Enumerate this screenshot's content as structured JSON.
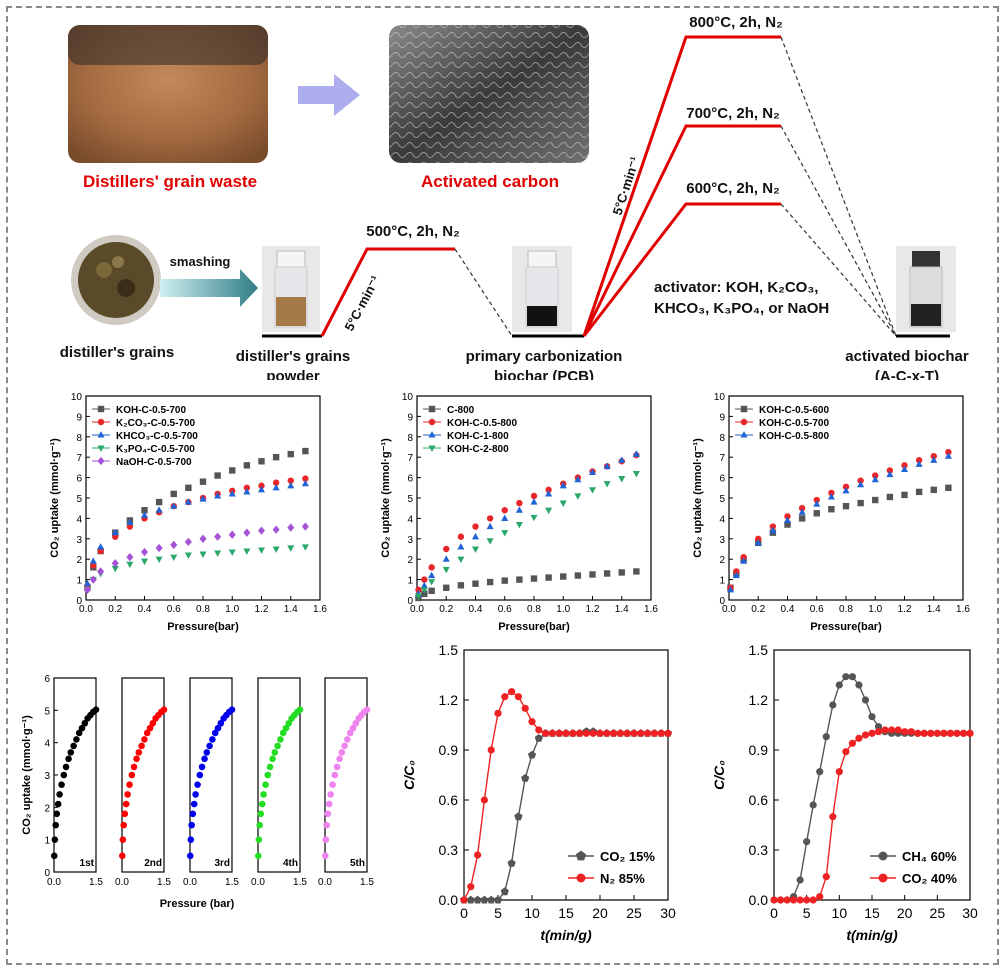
{
  "schematic": {
    "raw_label": "Distillers' grain waste",
    "product_label": "Activated carbon",
    "grains_label": "distiller's grains",
    "smashing_label": "smashing",
    "powder_label_1": "distiller's grains",
    "powder_label_2": "powder",
    "pcb_label_1": "primary carbonization",
    "pcb_label_2": "biochar (PCB)",
    "act_label_1": "activated biochar",
    "act_label_2": "(A-C-x-T)",
    "step1": "500°C, 2h, N₂",
    "rate": "5°C·min⁻¹",
    "step800": "800°C, 2h, N₂",
    "step700": "700°C, 2h, N₂",
    "step600": "600°C, 2h, N₂",
    "activator_1": "activator: KOH, K₂CO₃,",
    "activator_2": "KHCO₃, K₃PO₄, or NaOH",
    "colors": {
      "accent_red": "#e00000",
      "arrow_purple": "#9a98e8",
      "arrow_teal": "#2e7d86"
    }
  },
  "chart_data": [
    {
      "id": "a",
      "type": "scatter",
      "xlabel": "Pressure(bar)",
      "ylabel": "CO₂ uptake (mmol·g⁻¹)",
      "xlim": [
        0,
        1.6
      ],
      "ylim": [
        0,
        10
      ],
      "xticks": [
        "0.0",
        "0.2",
        "0.4",
        "0.6",
        "0.8",
        "1.0",
        "1.2",
        "1.4",
        "1.6"
      ],
      "yticks": [
        "0",
        "1",
        "2",
        "3",
        "4",
        "5",
        "6",
        "7",
        "8",
        "9",
        "10"
      ],
      "legend_position": "top-left",
      "series": [
        {
          "name": "KOH-C-0.5-700",
          "marker": "square",
          "color": "#555555",
          "x": [
            0.01,
            0.05,
            0.1,
            0.2,
            0.3,
            0.4,
            0.5,
            0.6,
            0.7,
            0.8,
            0.9,
            1.0,
            1.1,
            1.2,
            1.3,
            1.4,
            1.5
          ],
          "y": [
            0.6,
            1.6,
            2.4,
            3.3,
            3.9,
            4.4,
            4.8,
            5.2,
            5.5,
            5.8,
            6.1,
            6.35,
            6.6,
            6.8,
            7.0,
            7.15,
            7.3
          ]
        },
        {
          "name": "K₂CO₃-C-0.5-700",
          "marker": "circle",
          "color": "#e8262a",
          "x": [
            0.01,
            0.05,
            0.1,
            0.2,
            0.3,
            0.4,
            0.5,
            0.6,
            0.7,
            0.8,
            0.9,
            1.0,
            1.1,
            1.2,
            1.3,
            1.4,
            1.5
          ],
          "y": [
            0.7,
            1.7,
            2.4,
            3.1,
            3.6,
            4.0,
            4.3,
            4.6,
            4.8,
            5.0,
            5.2,
            5.35,
            5.5,
            5.6,
            5.75,
            5.85,
            5.95
          ]
        },
        {
          "name": "KHCO₃-C-0.5-700",
          "marker": "triangle-up",
          "color": "#1f63d6",
          "x": [
            0.01,
            0.05,
            0.1,
            0.2,
            0.3,
            0.4,
            0.5,
            0.6,
            0.7,
            0.8,
            0.9,
            1.0,
            1.1,
            1.2,
            1.3,
            1.4,
            1.5
          ],
          "y": [
            0.8,
            1.9,
            2.6,
            3.3,
            3.8,
            4.15,
            4.4,
            4.6,
            4.8,
            4.95,
            5.1,
            5.2,
            5.3,
            5.4,
            5.5,
            5.6,
            5.7
          ]
        },
        {
          "name": "K₃PO₄-C-0.5-700",
          "marker": "triangle-down",
          "color": "#2aa86a",
          "x": [
            0.01,
            0.05,
            0.1,
            0.2,
            0.3,
            0.4,
            0.5,
            0.6,
            0.7,
            0.8,
            0.9,
            1.0,
            1.1,
            1.2,
            1.3,
            1.4,
            1.5
          ],
          "y": [
            0.5,
            1.0,
            1.3,
            1.55,
            1.75,
            1.9,
            2.0,
            2.1,
            2.2,
            2.25,
            2.3,
            2.35,
            2.4,
            2.45,
            2.5,
            2.55,
            2.6
          ]
        },
        {
          "name": "NaOH-C-0.5-700",
          "marker": "diamond",
          "color": "#a452d6",
          "x": [
            0.01,
            0.05,
            0.1,
            0.2,
            0.3,
            0.4,
            0.5,
            0.6,
            0.7,
            0.8,
            0.9,
            1.0,
            1.1,
            1.2,
            1.3,
            1.4,
            1.5
          ],
          "y": [
            0.5,
            1.0,
            1.4,
            1.8,
            2.1,
            2.35,
            2.55,
            2.7,
            2.85,
            3.0,
            3.1,
            3.2,
            3.3,
            3.4,
            3.45,
            3.55,
            3.6
          ]
        }
      ]
    },
    {
      "id": "b",
      "type": "scatter",
      "xlabel": "Pressure(bar)",
      "ylabel": "CO₂ uptake (mmol·g⁻¹)",
      "xlim": [
        0,
        1.6
      ],
      "ylim": [
        0,
        10
      ],
      "xticks": [
        "0.0",
        "0.2",
        "0.4",
        "0.6",
        "0.8",
        "1.0",
        "1.2",
        "1.4",
        "1.6"
      ],
      "yticks": [
        "0",
        "1",
        "2",
        "3",
        "4",
        "5",
        "6",
        "7",
        "8",
        "9",
        "10"
      ],
      "legend_position": "top-left",
      "series": [
        {
          "name": "C-800",
          "marker": "square",
          "color": "#555555",
          "x": [
            0.01,
            0.05,
            0.1,
            0.2,
            0.3,
            0.4,
            0.5,
            0.6,
            0.7,
            0.8,
            0.9,
            1.0,
            1.1,
            1.2,
            1.3,
            1.4,
            1.5
          ],
          "y": [
            0.1,
            0.3,
            0.45,
            0.6,
            0.72,
            0.8,
            0.88,
            0.95,
            1.0,
            1.05,
            1.1,
            1.15,
            1.2,
            1.25,
            1.3,
            1.35,
            1.4
          ]
        },
        {
          "name": "KOH-C-0.5-800",
          "marker": "circle",
          "color": "#e8262a",
          "x": [
            0.01,
            0.05,
            0.1,
            0.2,
            0.3,
            0.4,
            0.5,
            0.6,
            0.7,
            0.8,
            0.9,
            1.0,
            1.1,
            1.2,
            1.3,
            1.4,
            1.5
          ],
          "y": [
            0.5,
            1.0,
            1.6,
            2.5,
            3.1,
            3.6,
            4.0,
            4.4,
            4.75,
            5.1,
            5.4,
            5.7,
            6.0,
            6.3,
            6.55,
            6.8,
            7.1
          ]
        },
        {
          "name": "KOH-C-1-800",
          "marker": "triangle-up",
          "color": "#1f63d6",
          "x": [
            0.01,
            0.05,
            0.1,
            0.2,
            0.3,
            0.4,
            0.5,
            0.6,
            0.7,
            0.8,
            0.9,
            1.0,
            1.1,
            1.2,
            1.3,
            1.4,
            1.5
          ],
          "y": [
            0.3,
            0.7,
            1.2,
            2.0,
            2.6,
            3.1,
            3.6,
            4.0,
            4.4,
            4.8,
            5.2,
            5.6,
            5.9,
            6.25,
            6.55,
            6.85,
            7.15
          ]
        },
        {
          "name": "KOH-C-2-800",
          "marker": "triangle-down",
          "color": "#2aa86a",
          "x": [
            0.01,
            0.05,
            0.1,
            0.2,
            0.3,
            0.4,
            0.5,
            0.6,
            0.7,
            0.8,
            0.9,
            1.0,
            1.1,
            1.2,
            1.3,
            1.4,
            1.5
          ],
          "y": [
            0.2,
            0.5,
            0.9,
            1.5,
            2.0,
            2.5,
            2.9,
            3.3,
            3.7,
            4.05,
            4.4,
            4.75,
            5.1,
            5.4,
            5.7,
            5.95,
            6.2
          ]
        }
      ]
    },
    {
      "id": "c",
      "type": "scatter",
      "xlabel": "Pressure(bar)",
      "ylabel": "CO₂ uptake (mmol·g⁻¹)",
      "xlim": [
        0,
        1.6
      ],
      "ylim": [
        0,
        10
      ],
      "xticks": [
        "0.0",
        "0.2",
        "0.4",
        "0.6",
        "0.8",
        "1.0",
        "1.2",
        "1.4",
        "1.6"
      ],
      "yticks": [
        "0",
        "1",
        "2",
        "3",
        "4",
        "5",
        "6",
        "7",
        "8",
        "9",
        "10"
      ],
      "legend_position": "top-left",
      "series": [
        {
          "name": "KOH-C-0.5-600",
          "marker": "square",
          "color": "#555555",
          "x": [
            0.01,
            0.05,
            0.1,
            0.2,
            0.3,
            0.4,
            0.5,
            0.6,
            0.7,
            0.8,
            0.9,
            1.0,
            1.1,
            1.2,
            1.3,
            1.4,
            1.5
          ],
          "y": [
            0.6,
            1.3,
            2.0,
            2.8,
            3.3,
            3.7,
            4.0,
            4.25,
            4.45,
            4.6,
            4.75,
            4.9,
            5.05,
            5.15,
            5.3,
            5.4,
            5.5
          ]
        },
        {
          "name": "KOH-C-0.5-700",
          "marker": "circle",
          "color": "#e8262a",
          "x": [
            0.01,
            0.05,
            0.1,
            0.2,
            0.3,
            0.4,
            0.5,
            0.6,
            0.7,
            0.8,
            0.9,
            1.0,
            1.1,
            1.2,
            1.3,
            1.4,
            1.5
          ],
          "y": [
            0.6,
            1.4,
            2.1,
            3.0,
            3.6,
            4.1,
            4.5,
            4.9,
            5.25,
            5.55,
            5.85,
            6.1,
            6.35,
            6.6,
            6.85,
            7.05,
            7.25
          ]
        },
        {
          "name": "KOH-C-0.5-800",
          "marker": "triangle-up",
          "color": "#1f63d6",
          "x": [
            0.01,
            0.05,
            0.1,
            0.2,
            0.3,
            0.4,
            0.5,
            0.6,
            0.7,
            0.8,
            0.9,
            1.0,
            1.1,
            1.2,
            1.3,
            1.4,
            1.5
          ],
          "y": [
            0.5,
            1.2,
            1.9,
            2.8,
            3.4,
            3.9,
            4.3,
            4.7,
            5.05,
            5.35,
            5.65,
            5.9,
            6.15,
            6.4,
            6.65,
            6.85,
            7.05
          ]
        }
      ]
    },
    {
      "id": "d",
      "type": "scatter",
      "xlabel": "Pressure (bar)",
      "ylabel": "CO₂ uptake (mmol·g⁻¹)",
      "ylim": [
        0,
        6
      ],
      "xlim": [
        0,
        1.5
      ],
      "yticks": [
        "0",
        "1",
        "2",
        "3",
        "4",
        "5",
        "6"
      ],
      "xticks": [
        "0.0",
        "1.5"
      ],
      "cycles": [
        {
          "name": "1st",
          "color": "#000000"
        },
        {
          "name": "2nd",
          "color": "#ff0000"
        },
        {
          "name": "3rd",
          "color": "#0000ee"
        },
        {
          "name": "4th",
          "color": "#22dd22"
        },
        {
          "name": "5th",
          "color": "#ee82ee"
        }
      ],
      "cycle_x": [
        0.01,
        0.03,
        0.06,
        0.1,
        0.15,
        0.2,
        0.27,
        0.35,
        0.43,
        0.52,
        0.6,
        0.7,
        0.8,
        0.9,
        1.0,
        1.1,
        1.2,
        1.3,
        1.4,
        1.5
      ],
      "cycle_y": [
        0.5,
        1.0,
        1.45,
        1.8,
        2.1,
        2.4,
        2.7,
        3.0,
        3.25,
        3.5,
        3.7,
        3.9,
        4.1,
        4.3,
        4.45,
        4.6,
        4.75,
        4.85,
        4.95,
        5.02
      ]
    },
    {
      "id": "e",
      "type": "line",
      "xlabel": "t(min/g)",
      "ylabel": "C/C₀",
      "xlim": [
        0,
        30
      ],
      "ylim": [
        0,
        1.5
      ],
      "xticks": [
        "0",
        "5",
        "10",
        "15",
        "20",
        "25",
        "30"
      ],
      "yticks": [
        "0.0",
        "0.3",
        "0.6",
        "0.9",
        "1.2",
        "1.5"
      ],
      "legend_position": "bottom-right",
      "series": [
        {
          "name": "CO₂ 15%",
          "marker": "pentagon",
          "color": "#555555",
          "x": [
            0,
            1,
            2,
            3,
            4,
            5,
            6,
            7,
            8,
            9,
            10,
            11,
            12,
            13,
            14,
            15,
            16,
            17,
            18,
            19,
            20,
            21,
            22,
            23,
            24,
            25,
            26,
            27,
            28,
            29,
            30
          ],
          "y": [
            0,
            0,
            0,
            0,
            0,
            0,
            0.05,
            0.22,
            0.5,
            0.73,
            0.87,
            0.97,
            1.0,
            1.0,
            1.0,
            1.0,
            1.0,
            1.0,
            1.01,
            1.01,
            1.0,
            1.0,
            1.0,
            1.0,
            1.0,
            1.0,
            1.0,
            1.0,
            1.0,
            1.0,
            1.0
          ]
        },
        {
          "name": "N₂ 85%",
          "marker": "circle",
          "color": "#ee2222",
          "x": [
            0,
            1,
            2,
            3,
            4,
            5,
            6,
            7,
            8,
            9,
            10,
            11,
            12,
            13,
            14,
            15,
            16,
            17,
            18,
            19,
            20,
            21,
            22,
            23,
            24,
            25,
            26,
            27,
            28,
            29,
            30
          ],
          "y": [
            0,
            0.08,
            0.27,
            0.6,
            0.9,
            1.12,
            1.22,
            1.25,
            1.22,
            1.15,
            1.07,
            1.02,
            1.0,
            1.0,
            1.0,
            1.0,
            1.0,
            1.0,
            1.0,
            1.0,
            1.0,
            1.0,
            1.0,
            1.0,
            1.0,
            1.0,
            1.0,
            1.0,
            1.0,
            1.0,
            1.0
          ]
        }
      ]
    },
    {
      "id": "f",
      "type": "line",
      "xlabel": "t(min/g)",
      "ylabel": "C/C₀",
      "xlim": [
        0,
        30
      ],
      "ylim": [
        0,
        1.5
      ],
      "xticks": [
        "0",
        "5",
        "10",
        "15",
        "20",
        "25",
        "30"
      ],
      "yticks": [
        "0.0",
        "0.3",
        "0.6",
        "0.9",
        "1.2",
        "1.5"
      ],
      "legend_position": "bottom-right",
      "series": [
        {
          "name": "CH₄ 60%",
          "marker": "circle",
          "color": "#555555",
          "x": [
            0,
            1,
            2,
            3,
            4,
            5,
            6,
            7,
            8,
            9,
            10,
            11,
            12,
            13,
            14,
            15,
            16,
            17,
            18,
            19,
            20,
            21,
            22,
            23,
            24,
            25,
            26,
            27,
            28,
            29,
            30
          ],
          "y": [
            0,
            0,
            0,
            0.02,
            0.12,
            0.35,
            0.57,
            0.77,
            0.98,
            1.17,
            1.29,
            1.34,
            1.34,
            1.29,
            1.2,
            1.1,
            1.04,
            1.01,
            1.0,
            1.0,
            1.0,
            1.0,
            1.0,
            1.0,
            1.0,
            1.0,
            1.0,
            1.0,
            1.0,
            1.0,
            1.0
          ]
        },
        {
          "name": "CO₂ 40%",
          "marker": "circle",
          "color": "#ee2222",
          "x": [
            0,
            1,
            2,
            3,
            4,
            5,
            6,
            7,
            8,
            9,
            10,
            11,
            12,
            13,
            14,
            15,
            16,
            17,
            18,
            19,
            20,
            21,
            22,
            23,
            24,
            25,
            26,
            27,
            28,
            29,
            30
          ],
          "y": [
            0,
            0,
            0,
            0,
            0,
            0,
            0,
            0.02,
            0.14,
            0.5,
            0.77,
            0.89,
            0.94,
            0.97,
            0.99,
            1.0,
            1.01,
            1.02,
            1.02,
            1.02,
            1.01,
            1.01,
            1.0,
            1.0,
            1.0,
            1.0,
            1.0,
            1.0,
            1.0,
            1.0,
            1.0
          ]
        }
      ]
    }
  ]
}
